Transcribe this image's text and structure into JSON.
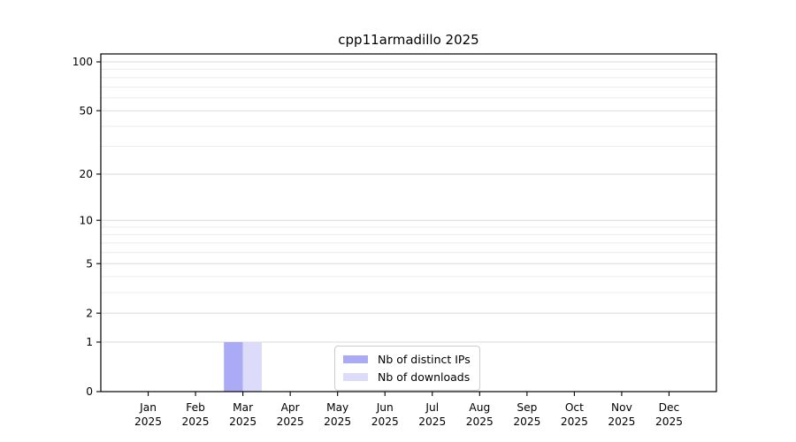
{
  "chart_data": {
    "type": "bar",
    "title": "cpp11armadillo 2025",
    "x_categories": [
      "Jan",
      "Feb",
      "Mar",
      "Apr",
      "May",
      "Jun",
      "Jul",
      "Aug",
      "Sep",
      "Oct",
      "Nov",
      "Dec"
    ],
    "x_year": "2025",
    "series": [
      {
        "name": "Nb of distinct IPs",
        "color": "#aaaaf6",
        "values": [
          0,
          0,
          1,
          0,
          0,
          0,
          0,
          0,
          0,
          0,
          0,
          0
        ]
      },
      {
        "name": "Nb of downloads",
        "color": "#dcdcfa",
        "values": [
          0,
          0,
          1,
          0,
          0,
          0,
          0,
          0,
          0,
          0,
          0,
          0
        ]
      }
    ],
    "y_axis": {
      "scale": "log10(value+1)",
      "tick_values": [
        0,
        1,
        2,
        5,
        10,
        20,
        50,
        100
      ],
      "tick_labels": [
        "0",
        "1",
        "2",
        "5",
        "10",
        "20",
        "50",
        "100"
      ],
      "minor_grid_values": [
        3,
        4,
        6,
        7,
        8,
        9,
        30,
        40,
        60,
        70,
        80,
        90
      ],
      "ylim": [
        0,
        112
      ]
    },
    "legend": {
      "position": "lower center",
      "entries": [
        "Nb of distinct IPs",
        "Nb of downloads"
      ]
    },
    "colors": {
      "axis": "#000000",
      "text": "#000000",
      "grid_major": "#dbdbdb",
      "grid_minor": "#ececec",
      "background": "#ffffff"
    }
  }
}
